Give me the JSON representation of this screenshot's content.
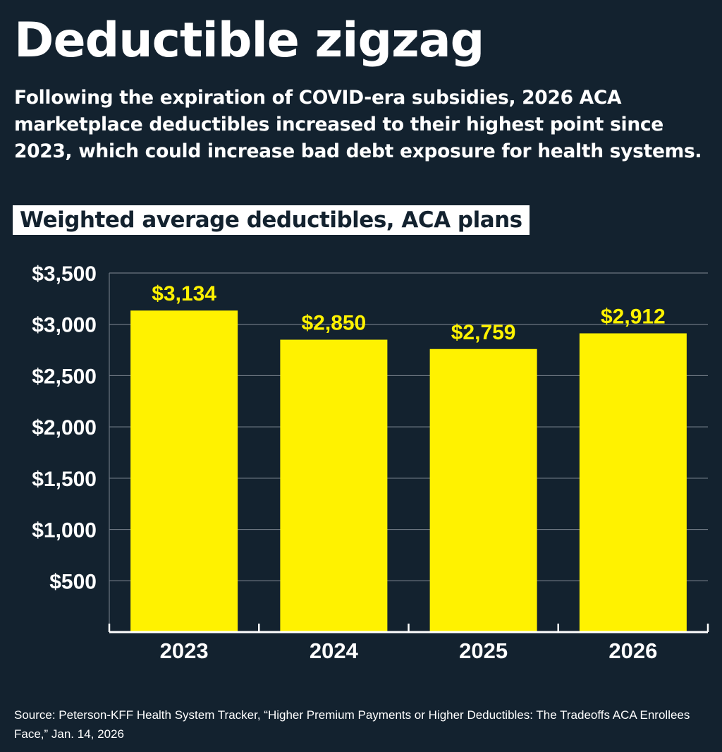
{
  "title": "Deductible zigzag",
  "subtitle": "Following the expiration of COVID-era subsidies, 2026 ACA marketplace deductibles increased to their highest point since 2023, which could increase bad debt exposure for health systems.",
  "source": "Source: Peterson-KFF Health System Tracker, “Higher Premium Payments or Higher Deductibles: The Tradeoffs ACA Enrollees Face,” Jan. 14, 2026",
  "colors": {
    "background": "#13222f",
    "bar": "#fff200",
    "text": "#ffffff",
    "grid": "#6b7580"
  },
  "chart_data": {
    "type": "bar",
    "title": "Weighted average deductibles, ACA plans",
    "categories": [
      "2023",
      "2024",
      "2025",
      "2026"
    ],
    "values": [
      3134,
      2850,
      2759,
      2912
    ],
    "data_labels": [
      "$3,134",
      "$2,850",
      "$2,759",
      "$2,912"
    ],
    "yticks": [
      "$500",
      "$1,000",
      "$1,500",
      "$2,000",
      "$2,500",
      "$3,000",
      "$3,500"
    ],
    "ytick_values": [
      500,
      1000,
      1500,
      2000,
      2500,
      3000,
      3500
    ],
    "ylim": [
      0,
      3500
    ],
    "grid": true,
    "xlabel": "",
    "ylabel": ""
  }
}
